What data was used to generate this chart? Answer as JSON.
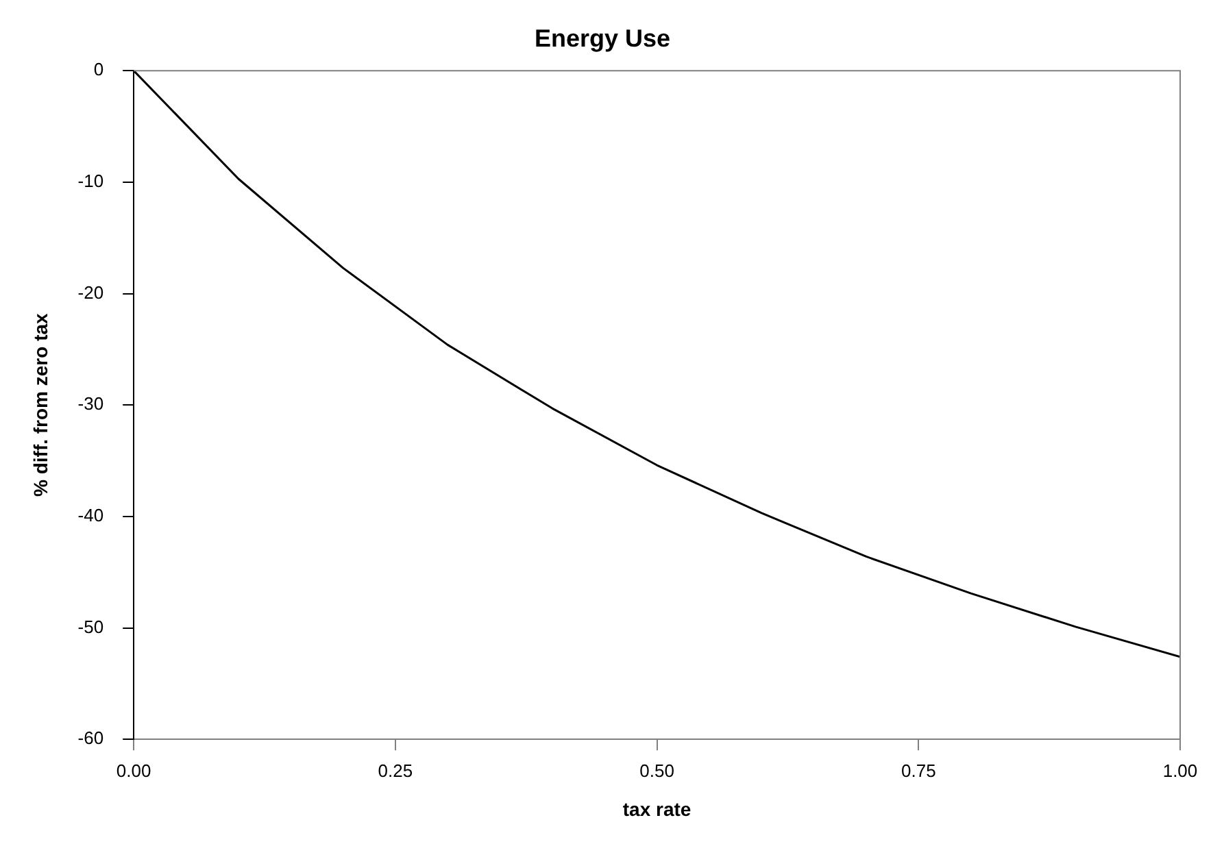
{
  "chart_data": {
    "type": "line",
    "title": "Energy Use",
    "xlabel": "tax rate",
    "ylabel": "% diff. from zero tax",
    "x": [
      0,
      0.1,
      0.2,
      0.3,
      0.4,
      0.5,
      0.6,
      0.7,
      0.8,
      0.9,
      1.0
    ],
    "series": [
      {
        "color": "#000000",
        "values": [
          0,
          -9.7,
          -17.7,
          -24.6,
          -30.3,
          -35.4,
          -39.7,
          -43.6,
          -46.9,
          -49.9,
          -52.6
        ]
      }
    ],
    "xlim": [
      0,
      1
    ],
    "xticks": [
      {
        "value": 0,
        "label": "0.00"
      },
      {
        "value": 0.25,
        "label": "0.25"
      },
      {
        "value": 0.5,
        "label": "0.50"
      },
      {
        "value": 0.75,
        "label": "0.75"
      },
      {
        "value": 1,
        "label": "1.00"
      }
    ],
    "ylim": [
      -60,
      0
    ],
    "yticks": [
      -60,
      -50,
      -40,
      -30,
      -20,
      -10,
      0
    ],
    "grid": false,
    "legend": false,
    "marker": "none",
    "line_style": "solid"
  }
}
